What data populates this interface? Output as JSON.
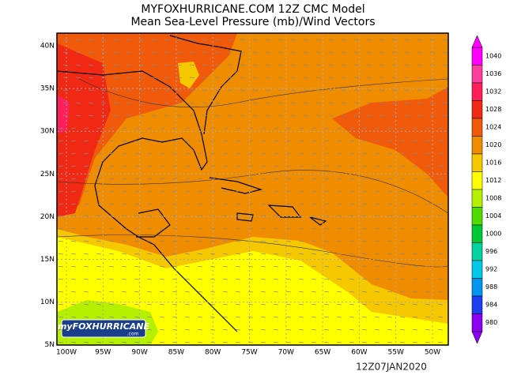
{
  "header": {
    "line1": "MYFOXHURRICANE.COM 12Z CMC Model",
    "line2": "Mean Sea-Level Pressure (mb)/Wind Vectors"
  },
  "map": {
    "lat_labels": [
      "40N",
      "35N",
      "30N",
      "25N",
      "20N",
      "15N",
      "10N",
      "5N"
    ],
    "lon_labels": [
      "100W",
      "95W",
      "90W",
      "85W",
      "80W",
      "75W",
      "70W",
      "65W",
      "60W",
      "55W",
      "50W"
    ]
  },
  "colorbar": {
    "levels": [
      1040,
      1036,
      1032,
      1028,
      1024,
      1020,
      1016,
      1012,
      1008,
      1004,
      1000,
      996,
      992,
      988,
      984,
      980
    ],
    "colors": [
      "#ff00ff",
      "#ff3ca0",
      "#ff1e5a",
      "#f02814",
      "#f05a0a",
      "#f08c00",
      "#f5c800",
      "#ffff00",
      "#b4f000",
      "#50dc00",
      "#00c832",
      "#00d2a0",
      "#00c8e6",
      "#0096f0",
      "#1e3cf0",
      "#8c00f0"
    ]
  },
  "logo": {
    "name": "myFOXHURRICANE",
    "suffix": ".com"
  },
  "timestamp": "12Z07JAN2020"
}
